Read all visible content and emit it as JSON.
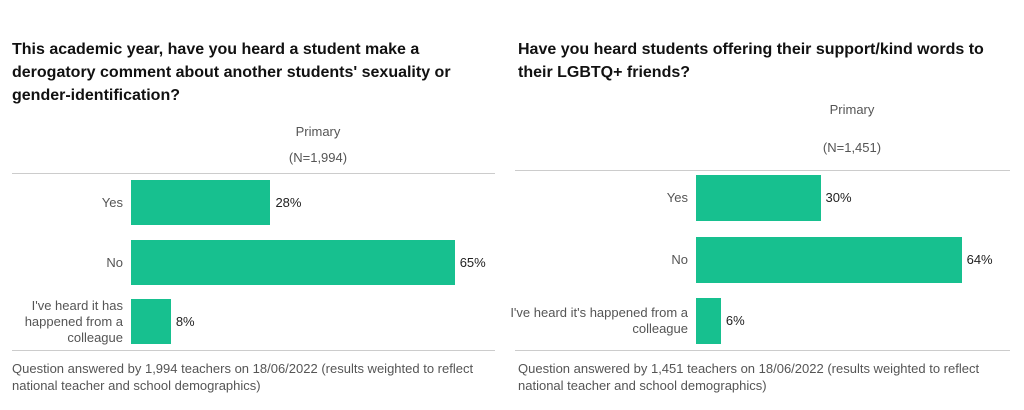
{
  "chart_data": [
    {
      "type": "bar",
      "orientation": "horizontal",
      "title": "This academic year, have you heard a student make a derogatory comment about another students' sexuality or gender-identification?",
      "column_header": "Primary",
      "sample_size": "(N=1,994)",
      "categories": [
        "Yes",
        "No",
        "I've heard it has happened from a colleague"
      ],
      "values": [
        28,
        65,
        8
      ],
      "value_labels": [
        "28%",
        "65%",
        "8%"
      ],
      "color": "#17c08f",
      "footnote": "Question answered by 1,994 teachers on 18/06/2022 (results weighted to reflect national teacher and school demographics)"
    },
    {
      "type": "bar",
      "orientation": "horizontal",
      "title": "Have you heard students offering their support/kind words to their LGBTQ+ friends?",
      "column_header": "Primary",
      "sample_size": "(N=1,451)",
      "categories": [
        "Yes",
        "No",
        "I've heard it's happened from a colleague"
      ],
      "values": [
        30,
        64,
        6
      ],
      "value_labels": [
        "30%",
        "64%",
        "6%"
      ],
      "color": "#17c08f",
      "footnote": "Question answered by 1,451 teachers on 18/06/2022 (results weighted to reflect national teacher and school demographics)"
    }
  ]
}
